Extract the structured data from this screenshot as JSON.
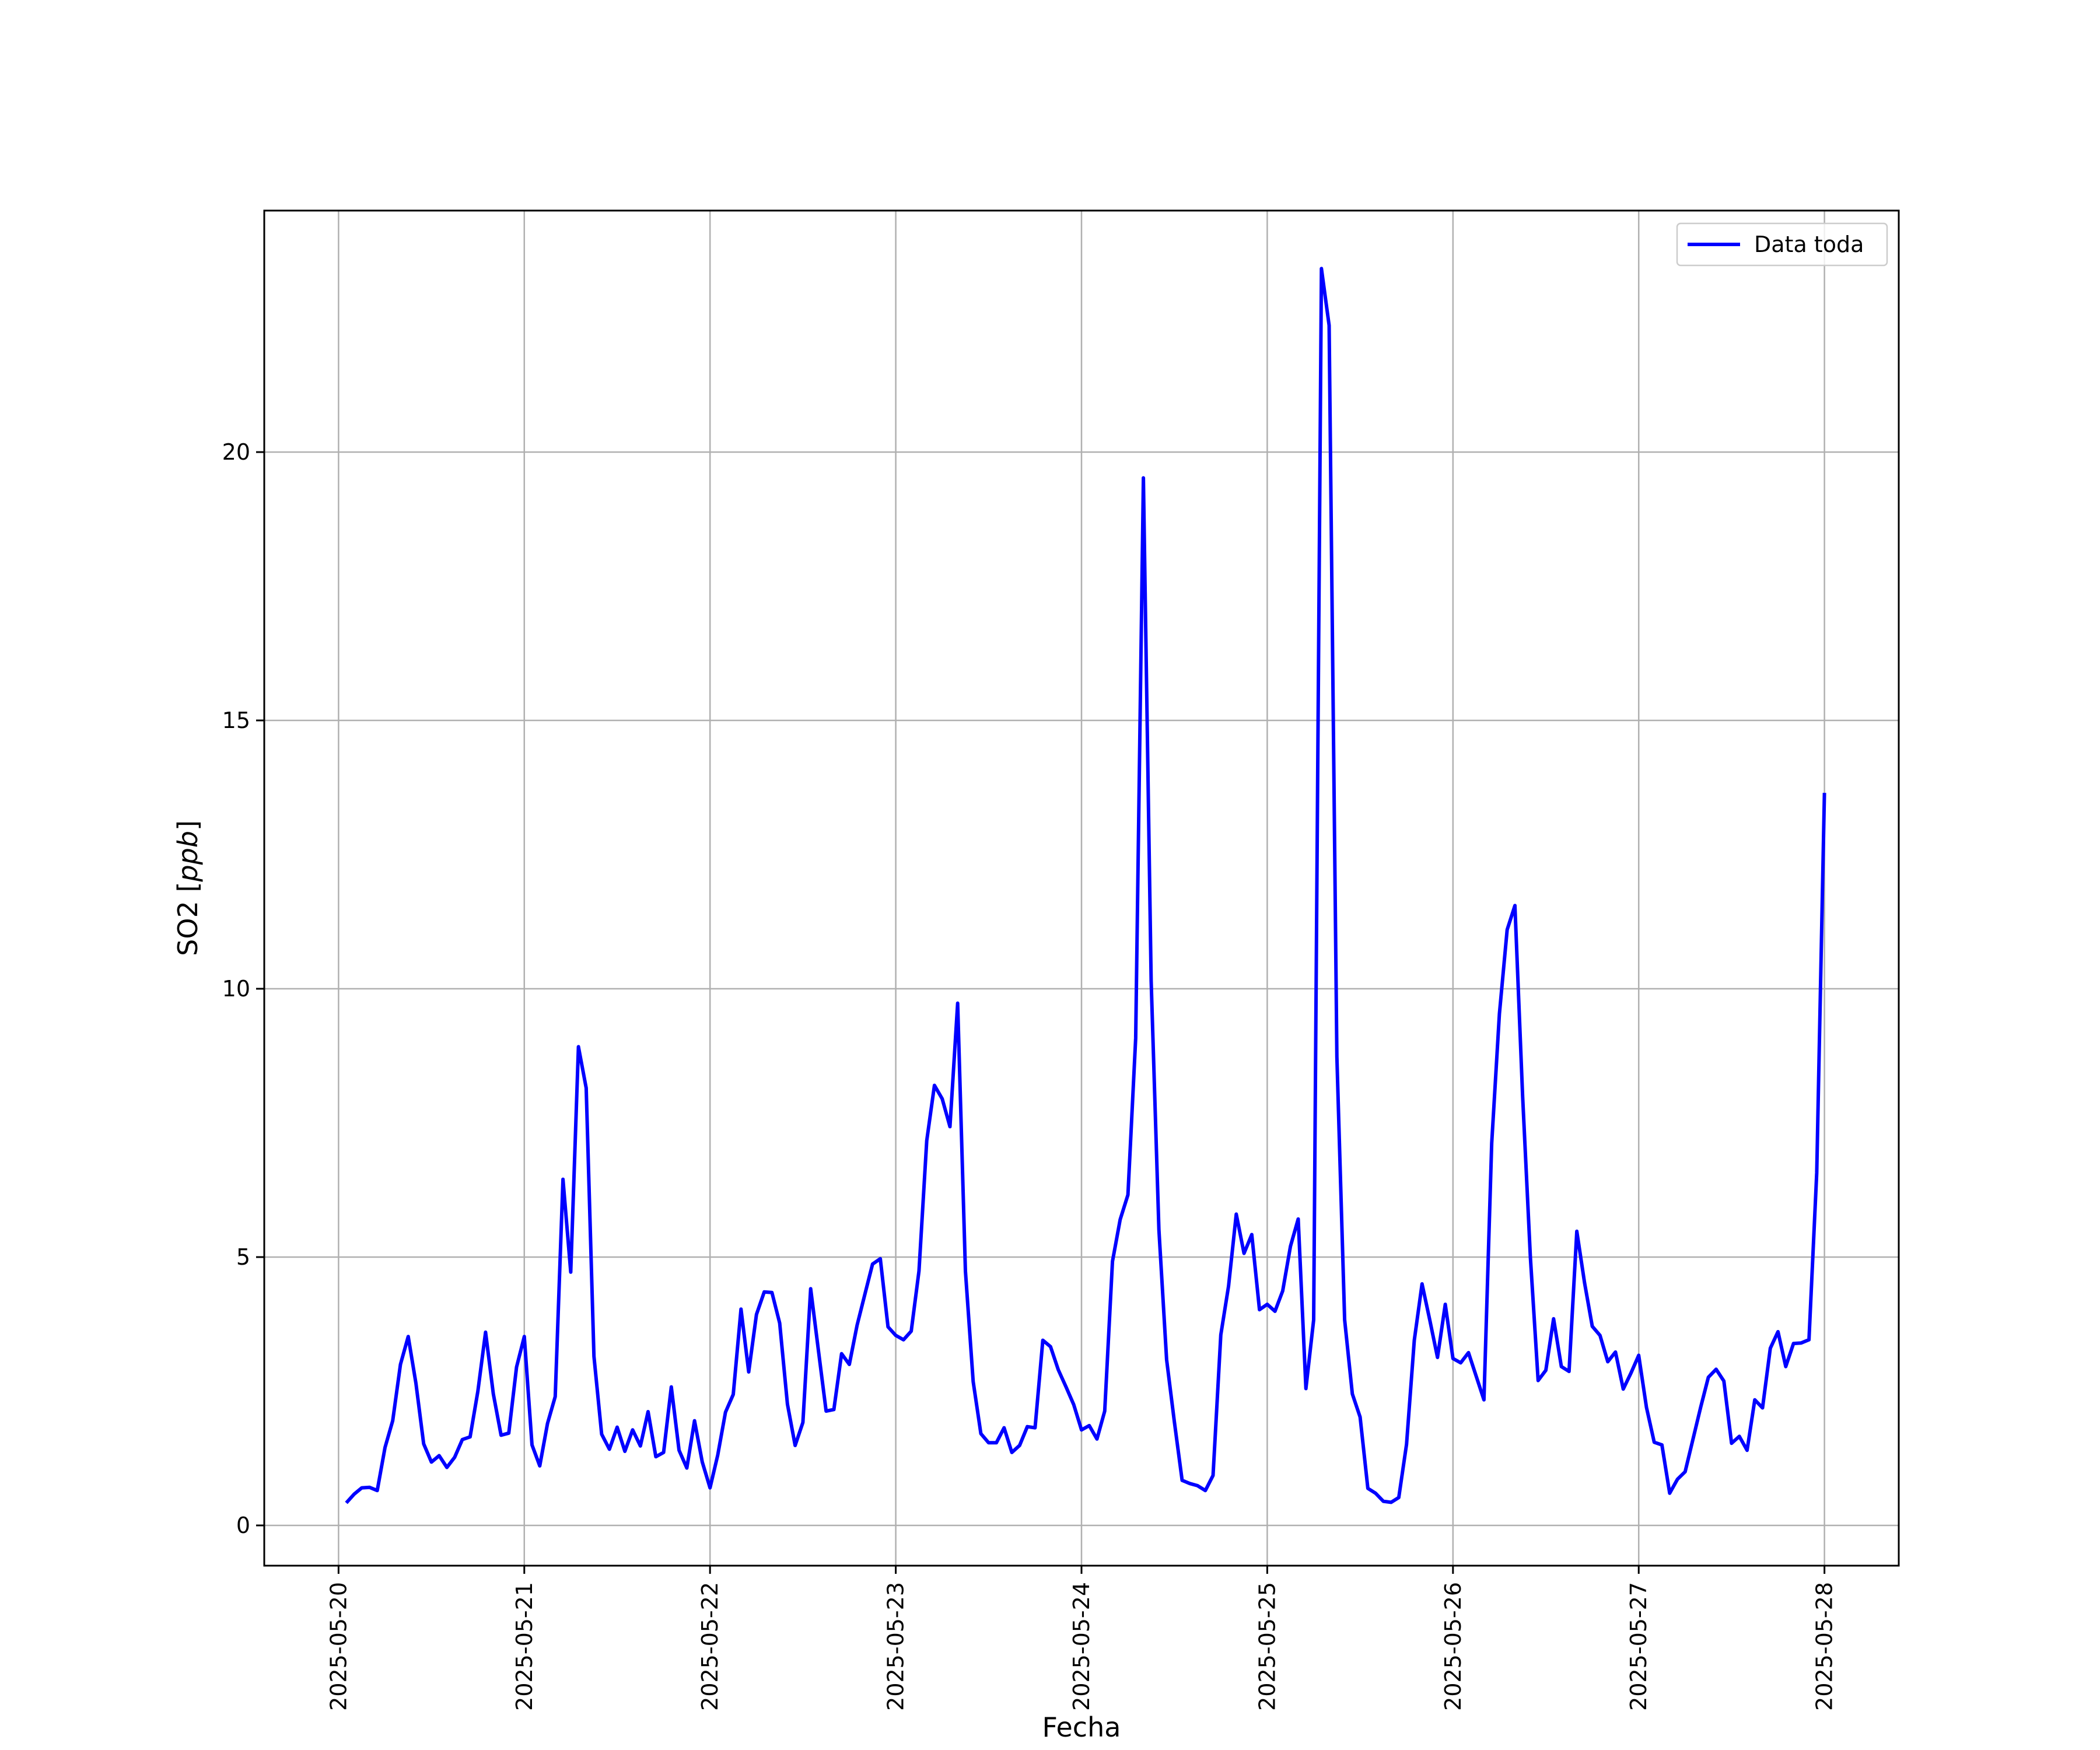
{
  "chart_data": {
    "type": "line",
    "xlabel": "Fecha",
    "ylabel": "SO2 [ppb]",
    "ylabel_parts": {
      "main": "SO2 [",
      "unit": "ppb",
      "close": "]"
    },
    "xlim": [
      "2025-05-19 14:24",
      "2025-05-28 09:36"
    ],
    "ylim": [
      -0.75,
      24.5
    ],
    "x_ticks": [
      "2025-05-20",
      "2025-05-21",
      "2025-05-22",
      "2025-05-23",
      "2025-05-24",
      "2025-05-25",
      "2025-05-26",
      "2025-05-27",
      "2025-05-28"
    ],
    "y_ticks": [
      0,
      5,
      10,
      15,
      20
    ],
    "grid": true,
    "legend_position": "top-right",
    "series": [
      {
        "name": "Data toda",
        "color": "#0000ff",
        "x": [
          "2025-05-20 01:00",
          "2025-05-20 02:00",
          "2025-05-20 03:00",
          "2025-05-20 04:00",
          "2025-05-20 05:00",
          "2025-05-20 06:00",
          "2025-05-20 07:00",
          "2025-05-20 08:00",
          "2025-05-20 09:00",
          "2025-05-20 10:00",
          "2025-05-20 11:00",
          "2025-05-20 12:00",
          "2025-05-20 13:00",
          "2025-05-20 14:00",
          "2025-05-20 15:00",
          "2025-05-20 16:00",
          "2025-05-20 17:00",
          "2025-05-20 18:00",
          "2025-05-20 19:00",
          "2025-05-20 20:00",
          "2025-05-20 21:00",
          "2025-05-20 22:00",
          "2025-05-20 23:00",
          "2025-05-21 00:00",
          "2025-05-21 01:00",
          "2025-05-21 02:00",
          "2025-05-21 03:00",
          "2025-05-21 04:00",
          "2025-05-21 05:00",
          "2025-05-21 06:00",
          "2025-05-21 07:00",
          "2025-05-21 08:00",
          "2025-05-21 09:00",
          "2025-05-21 10:00",
          "2025-05-21 11:00",
          "2025-05-21 12:00",
          "2025-05-21 13:00",
          "2025-05-21 14:00",
          "2025-05-21 15:00",
          "2025-05-21 16:00",
          "2025-05-21 17:00",
          "2025-05-21 18:00",
          "2025-05-21 19:00",
          "2025-05-21 20:00",
          "2025-05-21 21:00",
          "2025-05-21 22:00",
          "2025-05-21 23:00",
          "2025-05-22 00:00",
          "2025-05-22 01:00",
          "2025-05-22 02:00",
          "2025-05-22 03:00",
          "2025-05-22 04:00",
          "2025-05-22 05:00",
          "2025-05-22 06:00",
          "2025-05-22 07:00",
          "2025-05-22 08:00",
          "2025-05-22 09:00",
          "2025-05-22 10:00",
          "2025-05-22 11:00",
          "2025-05-22 12:00",
          "2025-05-22 13:00",
          "2025-05-22 14:00",
          "2025-05-22 15:00",
          "2025-05-22 16:00",
          "2025-05-22 17:00",
          "2025-05-22 18:00",
          "2025-05-22 19:00",
          "2025-05-22 20:00",
          "2025-05-22 21:00",
          "2025-05-22 22:00",
          "2025-05-22 23:00",
          "2025-05-23 00:00",
          "2025-05-23 01:00",
          "2025-05-23 02:00",
          "2025-05-23 03:00",
          "2025-05-23 04:00",
          "2025-05-23 05:00",
          "2025-05-23 06:00",
          "2025-05-23 07:00",
          "2025-05-23 08:00",
          "2025-05-23 09:00",
          "2025-05-23 10:00",
          "2025-05-23 11:00",
          "2025-05-23 12:00",
          "2025-05-23 13:00",
          "2025-05-23 14:00",
          "2025-05-23 15:00",
          "2025-05-23 16:00",
          "2025-05-23 17:00",
          "2025-05-23 18:00",
          "2025-05-23 19:00",
          "2025-05-23 20:00",
          "2025-05-23 21:00",
          "2025-05-23 22:00",
          "2025-05-23 23:00",
          "2025-05-24 00:00",
          "2025-05-24 01:00",
          "2025-05-24 02:00",
          "2025-05-24 03:00",
          "2025-05-24 04:00",
          "2025-05-24 05:00",
          "2025-05-24 06:00",
          "2025-05-24 07:00",
          "2025-05-24 08:00",
          "2025-05-24 09:00",
          "2025-05-24 10:00",
          "2025-05-24 11:00",
          "2025-05-24 12:00",
          "2025-05-24 13:00",
          "2025-05-24 14:00",
          "2025-05-24 15:00",
          "2025-05-24 16:00",
          "2025-05-24 17:00",
          "2025-05-24 18:00",
          "2025-05-24 19:00",
          "2025-05-24 20:00",
          "2025-05-24 21:00",
          "2025-05-24 22:00",
          "2025-05-24 23:00",
          "2025-05-25 00:00",
          "2025-05-25 01:00",
          "2025-05-25 02:00",
          "2025-05-25 03:00",
          "2025-05-25 04:00",
          "2025-05-25 05:00",
          "2025-05-25 06:00",
          "2025-05-25 07:00",
          "2025-05-25 08:00",
          "2025-05-25 09:00",
          "2025-05-25 10:00",
          "2025-05-25 11:00",
          "2025-05-25 12:00",
          "2025-05-25 13:00",
          "2025-05-25 14:00",
          "2025-05-25 15:00",
          "2025-05-25 16:00",
          "2025-05-25 17:00",
          "2025-05-25 18:00",
          "2025-05-25 19:00",
          "2025-05-25 20:00",
          "2025-05-25 21:00",
          "2025-05-25 22:00",
          "2025-05-25 23:00",
          "2025-05-26 00:00",
          "2025-05-26 01:00",
          "2025-05-26 02:00",
          "2025-05-26 03:00",
          "2025-05-26 04:00",
          "2025-05-26 05:00",
          "2025-05-26 06:00",
          "2025-05-26 07:00",
          "2025-05-26 08:00",
          "2025-05-26 09:00",
          "2025-05-26 10:00",
          "2025-05-26 11:00",
          "2025-05-26 12:00",
          "2025-05-26 13:00",
          "2025-05-26 14:00",
          "2025-05-26 15:00",
          "2025-05-26 16:00",
          "2025-05-26 17:00",
          "2025-05-26 18:00",
          "2025-05-26 19:00",
          "2025-05-26 20:00",
          "2025-05-26 21:00",
          "2025-05-26 22:00",
          "2025-05-26 23:00",
          "2025-05-27 00:00",
          "2025-05-27 01:00",
          "2025-05-27 02:00",
          "2025-05-27 03:00",
          "2025-05-27 04:00",
          "2025-05-27 05:00",
          "2025-05-27 06:00",
          "2025-05-27 07:00",
          "2025-05-27 08:00",
          "2025-05-27 09:00",
          "2025-05-27 10:00",
          "2025-05-27 11:00",
          "2025-05-27 12:00",
          "2025-05-27 13:00",
          "2025-05-27 14:00",
          "2025-05-27 15:00",
          "2025-05-27 16:00",
          "2025-05-27 17:00",
          "2025-05-27 18:00",
          "2025-05-27 19:00",
          "2025-05-27 20:00",
          "2025-05-27 21:00",
          "2025-05-27 22:00",
          "2025-05-27 23:00",
          "2025-05-28 00:00"
        ],
        "y": [
          0.42,
          0.58,
          0.7,
          0.71,
          0.65,
          1.45,
          1.95,
          3.0,
          3.52,
          2.65,
          1.52,
          1.18,
          1.3,
          1.08,
          1.27,
          1.6,
          1.65,
          2.5,
          3.6,
          2.45,
          1.68,
          1.72,
          2.95,
          3.52,
          1.5,
          1.11,
          1.9,
          2.4,
          6.45,
          4.72,
          8.92,
          8.15,
          3.15,
          1.7,
          1.42,
          1.83,
          1.38,
          1.78,
          1.48,
          2.12,
          1.28,
          1.36,
          2.58,
          1.4,
          1.07,
          1.95,
          1.18,
          0.7,
          1.31,
          2.11,
          2.44,
          4.03,
          2.86,
          3.93,
          4.35,
          4.34,
          3.77,
          2.26,
          1.49,
          1.92,
          4.41,
          3.27,
          2.13,
          2.16,
          3.2,
          3.0,
          3.73,
          4.3,
          4.87,
          4.97,
          3.7,
          3.54,
          3.46,
          3.62,
          4.74,
          7.17,
          8.2,
          7.95,
          7.43,
          9.73,
          4.74,
          2.68,
          1.71,
          1.54,
          1.54,
          1.82,
          1.36,
          1.49,
          1.84,
          1.82,
          3.45,
          3.33,
          2.9,
          2.58,
          2.25,
          1.78,
          1.86,
          1.61,
          2.13,
          4.92,
          5.7,
          6.16,
          9.08,
          19.52,
          10.15,
          5.51,
          3.09,
          1.93,
          0.84,
          0.78,
          0.74,
          0.65,
          0.93,
          3.55,
          4.46,
          5.8,
          5.07,
          5.42,
          4.02,
          4.12,
          3.99,
          4.37,
          5.2,
          5.71,
          2.55,
          3.83,
          23.42,
          22.36,
          8.73,
          3.83,
          2.45,
          2.02,
          0.69,
          0.6,
          0.45,
          0.43,
          0.52,
          1.51,
          3.45,
          4.5,
          3.83,
          3.13,
          4.12,
          3.11,
          3.03,
          3.22,
          2.78,
          2.34,
          7.12,
          9.53,
          11.1,
          11.55,
          8.0,
          5.0,
          2.7,
          2.89,
          3.85,
          2.96,
          2.87,
          5.48,
          4.52,
          3.71,
          3.54,
          3.05,
          3.23,
          2.54,
          2.84,
          3.17,
          2.2,
          1.55,
          1.5,
          0.6,
          0.86,
          1.0,
          1.6,
          2.2,
          2.76,
          2.91,
          2.69,
          1.53,
          1.66,
          1.4,
          2.34,
          2.19,
          3.3,
          3.61,
          2.96,
          3.39,
          3.4,
          3.46,
          6.57,
          13.65
        ]
      }
    ]
  }
}
